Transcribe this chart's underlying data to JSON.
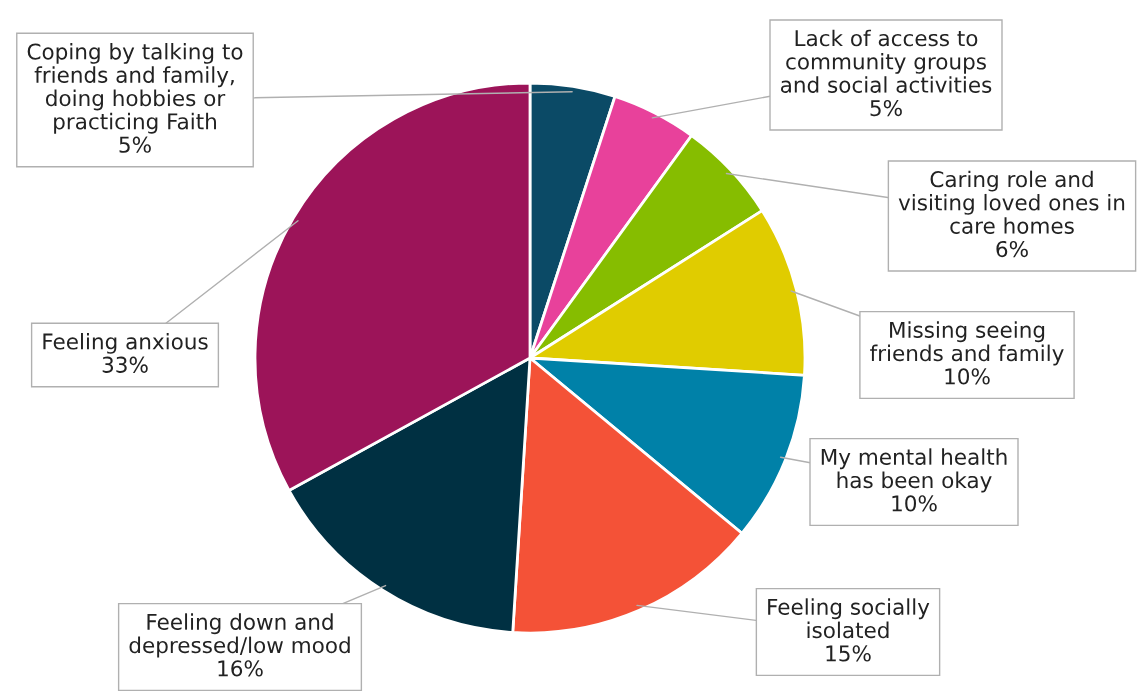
{
  "chart_data": {
    "type": "pie",
    "categories": [
      "Coping by talking to\nfriends and family,\ndoing hobbies or\npracticing Faith",
      "Lack of access to\ncommunity groups\nand social activities",
      "Caring role and\nvisiting loved ones in\ncare homes",
      "Missing seeing\nfriends and family",
      "My mental health\nhas been okay",
      "Feeling socially\nisolated",
      "Feeling down and\ndepressed/low mood",
      "Feeling anxious"
    ],
    "values": [
      5,
      5,
      6,
      10,
      10,
      15,
      16,
      33
    ],
    "value_labels": [
      "5%",
      "5%",
      "6%",
      "10%",
      "10%",
      "15%",
      "16%",
      "33%"
    ],
    "colors": [
      "#0b4a66",
      "#e8419b",
      "#86bd00",
      "#e0cc00",
      "#0081a8",
      "#f45237",
      "#003042",
      "#9c1459"
    ],
    "legend": false
  }
}
